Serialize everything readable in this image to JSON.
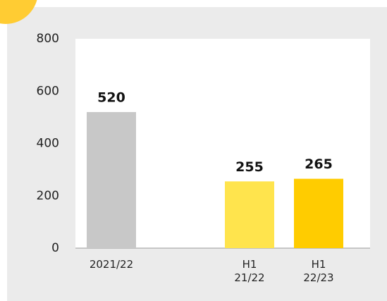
{
  "chart_data": {
    "type": "bar",
    "categories": [
      "2021/22",
      null,
      "H1\n21/22",
      "H1\n22/23"
    ],
    "values": [
      520,
      null,
      255,
      265
    ],
    "colors": [
      "#c8c8c8",
      null,
      "#ffe44d",
      "#ffcc00"
    ],
    "ylim": [
      0,
      800
    ],
    "yticks": [
      0,
      200,
      400,
      600,
      800
    ],
    "grid": false
  }
}
